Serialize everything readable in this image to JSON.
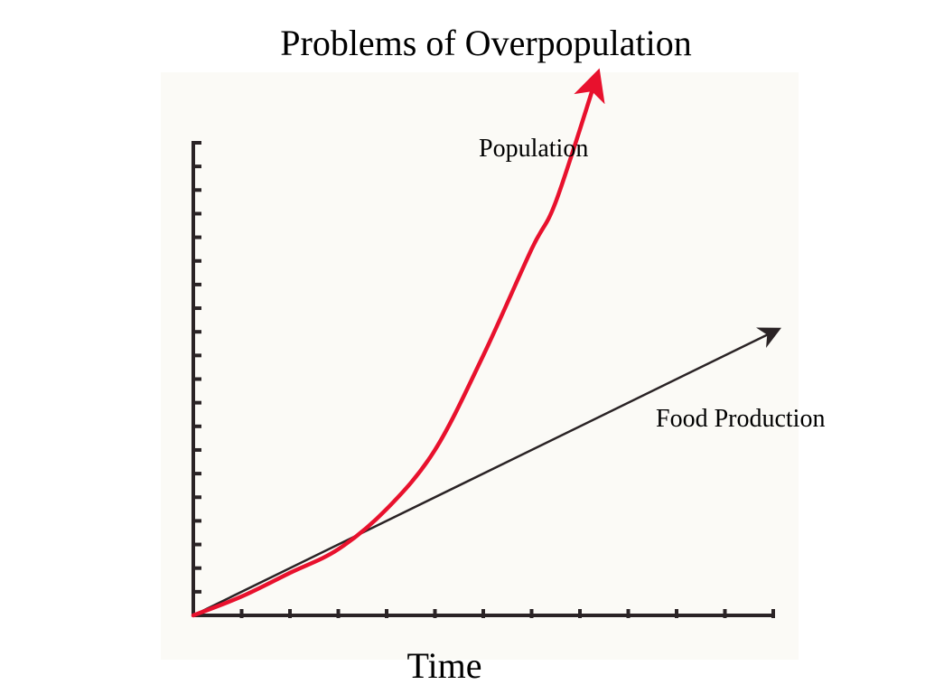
{
  "title": "Problems of Overpopulation",
  "chart_data": {
    "type": "line",
    "title": "Problems of Overpopulation",
    "xlabel": "Time",
    "ylabel": "",
    "x_ticks": 12,
    "y_ticks": 20,
    "xlim": [
      0,
      12
    ],
    "ylim": [
      0,
      20
    ],
    "grid": false,
    "legend": "none",
    "series": [
      {
        "name": "Population",
        "color": "#e8112d",
        "x": [
          0,
          1,
          2,
          3,
          4,
          5,
          6,
          7,
          7.5,
          8.3
        ],
        "y": [
          0,
          0.8,
          1.8,
          2.8,
          4.5,
          7,
          11,
          15.5,
          17.5,
          22.5
        ]
      },
      {
        "name": "Food Production",
        "color": "#2a2325",
        "x": [
          0,
          12
        ],
        "y": [
          0,
          12
        ]
      }
    ]
  }
}
